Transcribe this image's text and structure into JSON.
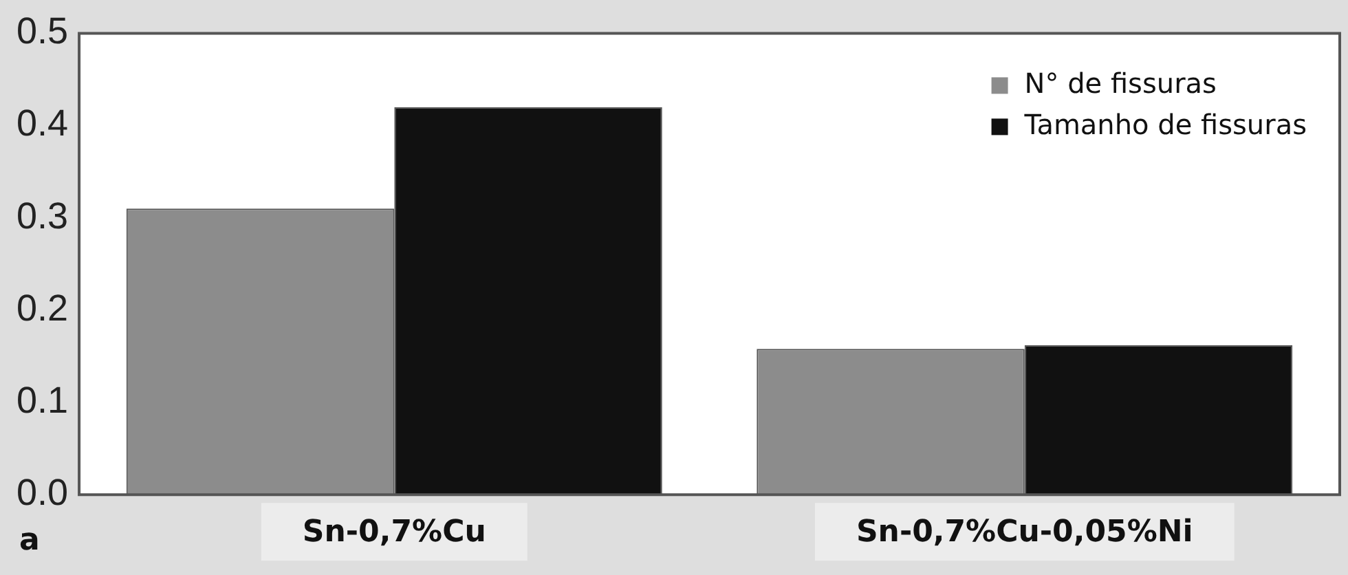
{
  "chart_data": {
    "type": "bar",
    "categories": [
      "Sn-0,7%Cu",
      "Sn-0,7%Cu-0,05%Ni"
    ],
    "series": [
      {
        "name": "N° de fissuras",
        "color": "#8c8c8c",
        "values": [
          0.31,
          0.158
        ]
      },
      {
        "name": "Tamanho de fissuras",
        "color": "#111111",
        "values": [
          0.42,
          0.162
        ]
      }
    ],
    "ylim": [
      0,
      0.5
    ],
    "yticks": [
      "0.0",
      0.1,
      0.2,
      0.3,
      0.4,
      0.5
    ],
    "grid": false,
    "legend": "top right",
    "annotations": [
      "a"
    ]
  }
}
